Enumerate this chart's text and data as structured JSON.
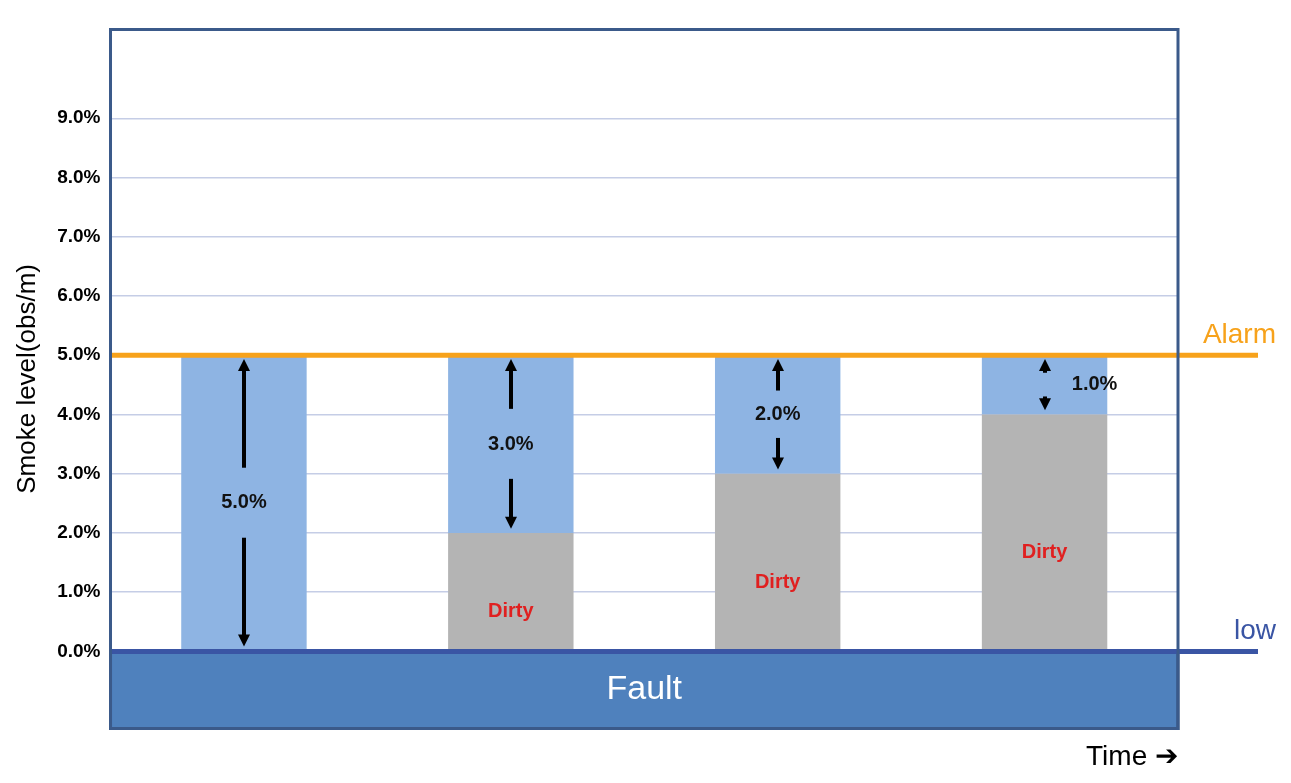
{
  "chart_data": {
    "type": "bar",
    "stacked": true,
    "xlabel": "Time ➔",
    "ylabel": "Smoke level(obs/m)",
    "categories": [
      null,
      null,
      null,
      null
    ],
    "series": [
      {
        "color": "#b4b4b4",
        "values": [
          0,
          2.0,
          3.0,
          4.0
        ],
        "value_labels": [
          null,
          "Dirty",
          "Dirty",
          "Dirty"
        ]
      },
      {
        "color": "#8eb4e3",
        "values": [
          5.0,
          3.0,
          2.0,
          1.0
        ],
        "value_labels": [
          "5.0%",
          "3.0%",
          "2.0%",
          "1.0%"
        ]
      }
    ],
    "ylim": [
      -1.3,
      10.5
    ],
    "yticks": [
      {
        "value": 0,
        "label": "0.0%"
      },
      {
        "value": 1,
        "label": "1.0%"
      },
      {
        "value": 2,
        "label": "2.0%"
      },
      {
        "value": 3,
        "label": "3.0%"
      },
      {
        "value": 4,
        "label": "4.0%"
      },
      {
        "value": 5,
        "label": "5.0%"
      },
      {
        "value": 6,
        "label": "6.0%"
      },
      {
        "value": 7,
        "label": "7.0%"
      },
      {
        "value": 8,
        "label": "8.0%"
      },
      {
        "value": 9,
        "label": "9.0%"
      }
    ],
    "ref_lines": [
      {
        "axis": "y",
        "value": 5,
        "label": "Alarm",
        "color": "#f7a21b"
      },
      {
        "axis": "y",
        "value": 0,
        "label": "low",
        "color": "#3a55a4"
      }
    ],
    "bands": [
      {
        "axis": "y",
        "from": -1.3,
        "to": 0,
        "label": "Fault",
        "color": "#4f81bd"
      }
    ],
    "grid": "y",
    "legend": false,
    "tick_labels": "y"
  }
}
